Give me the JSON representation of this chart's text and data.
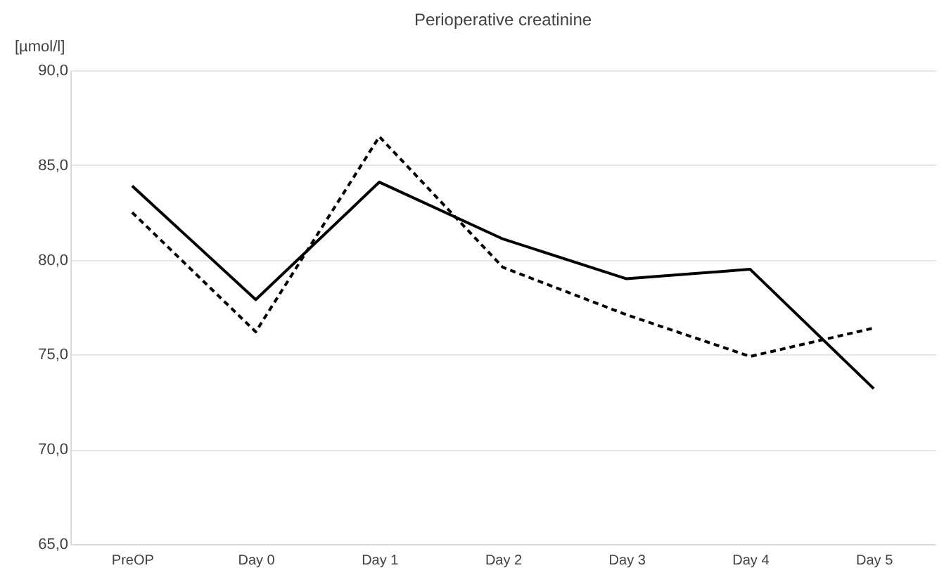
{
  "chart_data": {
    "type": "line",
    "title": "Perioperative creatinine",
    "ylabel": "[µmol/l]",
    "categories": [
      "PreOP",
      "Day 0",
      "Day 1",
      "Day 2",
      "Day 3",
      "Day 4",
      "Day 5"
    ],
    "series": [
      {
        "color": "#000000",
        "line_style": "solid",
        "values": [
          83.9,
          77.9,
          84.1,
          81.1,
          79.0,
          79.5,
          73.2
        ]
      },
      {
        "color": "#000000",
        "line_style": "dashed",
        "values": [
          82.5,
          76.2,
          86.5,
          79.6,
          77.1,
          74.9,
          76.4
        ]
      }
    ],
    "ylim": [
      65,
      90
    ],
    "yticks": [
      {
        "value": 65,
        "label": "65,0"
      },
      {
        "value": 70,
        "label": "70,0"
      },
      {
        "value": 75,
        "label": "75,0"
      },
      {
        "value": 80,
        "label": "80,0"
      },
      {
        "value": 85,
        "label": "85,0"
      },
      {
        "value": 90,
        "label": "90,0"
      }
    ],
    "grid": "y",
    "marker": "none"
  }
}
